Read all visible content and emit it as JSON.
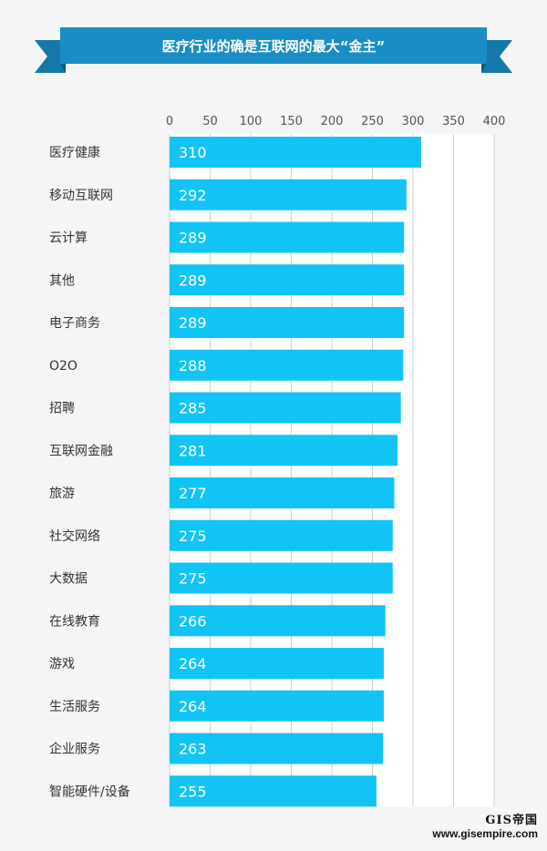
{
  "title": "医疗行业的确是互联网的最大“金主”",
  "chart_data": {
    "type": "bar",
    "orientation": "horizontal",
    "title": "医疗行业的确是互联网的最大“金主”",
    "xlabel": "",
    "ylabel": "",
    "xlim": [
      0,
      400
    ],
    "xticks": [
      0,
      50,
      100,
      150,
      200,
      250,
      300,
      350,
      400
    ],
    "grid": true,
    "categories": [
      "医疗健康",
      "移动互联网",
      "云计算",
      "其他",
      "电子商务",
      "O2O",
      "招聘",
      "互联网金融",
      "旅游",
      "社交网络",
      "大数据",
      "在线教育",
      "游戏",
      "生活服务",
      "企业服务",
      "智能硬件/设备"
    ],
    "values": [
      310,
      292,
      289,
      289,
      289,
      288,
      285,
      281,
      277,
      275,
      275,
      266,
      264,
      264,
      263,
      255
    ],
    "bar_color": "#12c4f5",
    "banner_color": "#1a8ec4"
  },
  "watermark": {
    "logo": "GIS帝国",
    "url": "www.gisempire.com"
  }
}
